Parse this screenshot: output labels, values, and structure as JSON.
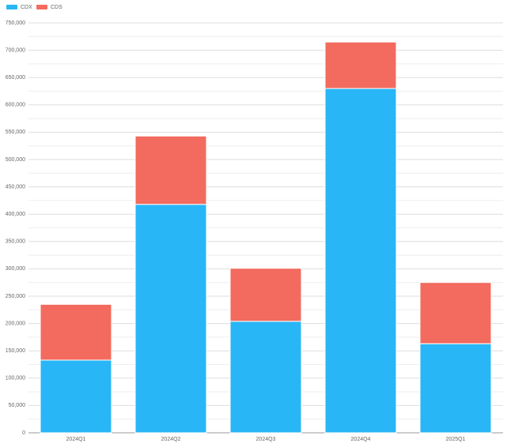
{
  "chart_data": {
    "type": "stacked_bar",
    "categories": [
      "2024Q1",
      "2024Q2",
      "2024Q3",
      "2024Q4",
      "2025Q1"
    ],
    "series": [
      {
        "name": "CDX",
        "color": "#29b6f6",
        "values": [
          133000,
          418000,
          204000,
          630000,
          163000
        ]
      },
      {
        "name": "CDS",
        "color": "#f26b5e",
        "values": [
          102000,
          125000,
          97000,
          85000,
          112000
        ]
      }
    ],
    "ylim": [
      0,
      750000
    ],
    "yticks": [
      0,
      {
        "value": 50000,
        "label": "50,000"
      },
      {
        "value": 100000,
        "label": "100,000"
      },
      {
        "value": 150000,
        "label": "150,000"
      },
      {
        "value": 200000,
        "label": "200,000"
      },
      {
        "value": 250000,
        "label": "250,000"
      },
      {
        "value": 300000,
        "label": "300,000"
      },
      {
        "value": 350000,
        "label": "350,000"
      },
      {
        "value": 400000,
        "label": "400,000"
      },
      {
        "value": 450000,
        "label": "450,000"
      },
      {
        "value": 500000,
        "label": "500,000"
      },
      {
        "value": 550000,
        "label": "550,000"
      },
      {
        "value": 600000,
        "label": "600,000"
      },
      {
        "value": 650000,
        "label": "650,000"
      },
      {
        "value": 700000,
        "label": "700,000"
      },
      {
        "value": 750000,
        "label": "750,000"
      }
    ],
    "minor_yticks": [
      25000,
      75000,
      125000,
      175000,
      225000,
      275000,
      325000,
      375000,
      425000,
      475000,
      525000,
      575000,
      625000,
      675000,
      725000
    ],
    "grid": true,
    "legend": "top-left"
  }
}
